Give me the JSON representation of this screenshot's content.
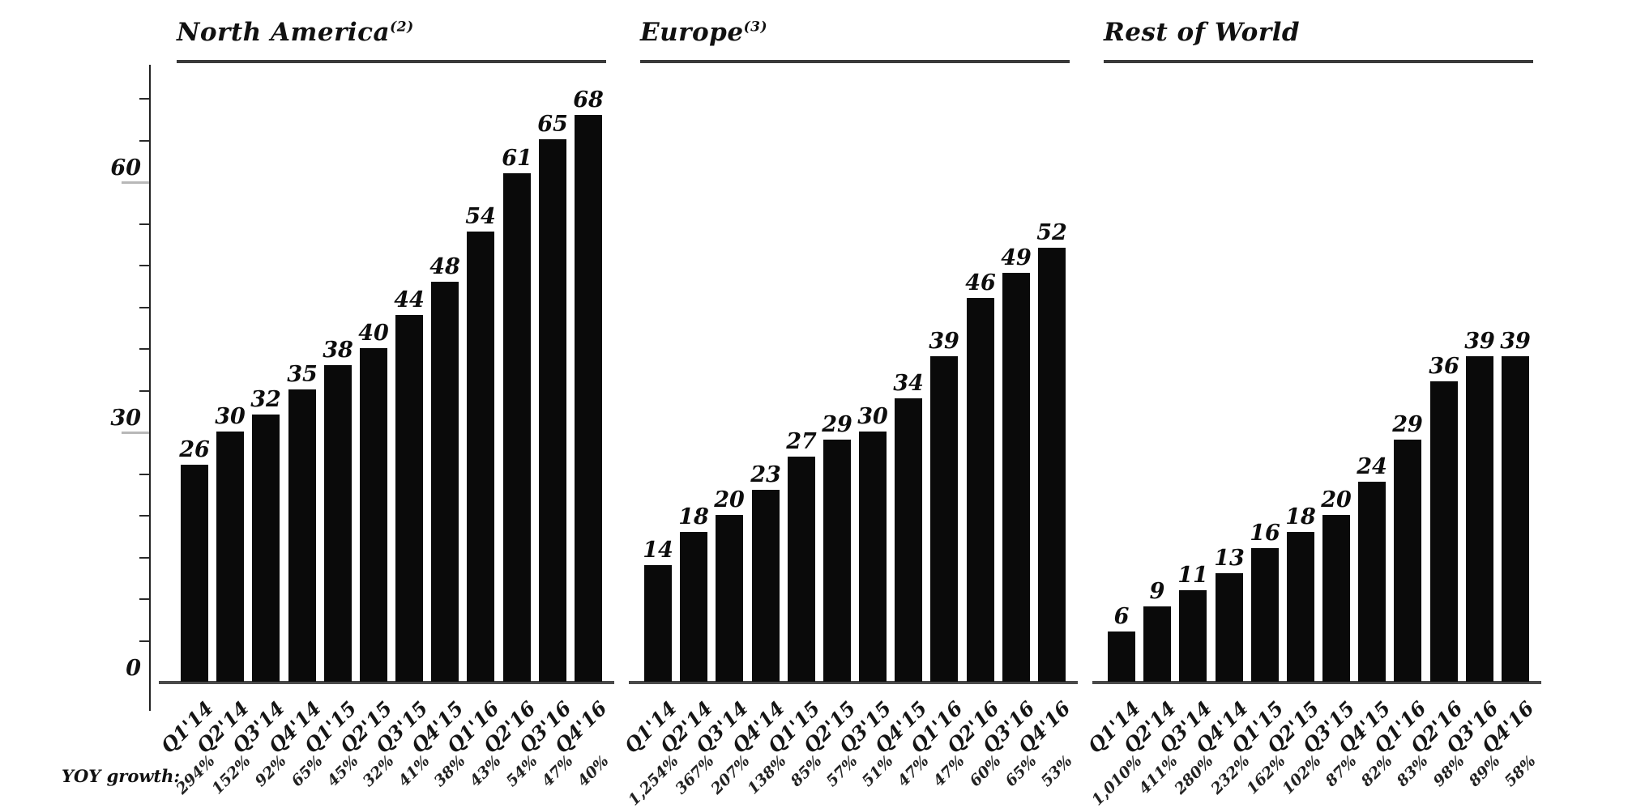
{
  "colors": {
    "background": "#ffffff",
    "bar": "#0a0a0a",
    "text": "#111111",
    "axis": "#222222",
    "baseline": "#4a4a4a",
    "title_rule": "#3a3a3a",
    "major_tick_stub": "#b8b8b8"
  },
  "yoy_label": "YOY growth:",
  "y_axis": {
    "min": 0,
    "max": 70,
    "minor_step": 5,
    "major_ticks": [
      {
        "value": 60,
        "label": "60"
      },
      {
        "value": 30,
        "label": "30"
      },
      {
        "value": 0,
        "label": "0"
      }
    ]
  },
  "chart_data": [
    {
      "type": "bar",
      "title": "North America",
      "footnote": "(2)",
      "categories": [
        "Q1'14",
        "Q2'14",
        "Q3'14",
        "Q4'14",
        "Q1'15",
        "Q2'15",
        "Q3'15",
        "Q4'15",
        "Q1'16",
        "Q2'16",
        "Q3'16",
        "Q4'16"
      ],
      "values": [
        26,
        30,
        32,
        35,
        38,
        40,
        44,
        48,
        54,
        61,
        65,
        68
      ],
      "yoy_growth": [
        "294%",
        "152%",
        "92%",
        "65%",
        "45%",
        "32%",
        "41%",
        "38%",
        "43%",
        "54%",
        "47%",
        "40%"
      ],
      "xlabel": "",
      "ylabel": "",
      "ylim": [
        0,
        70
      ],
      "yticks": [
        0,
        30,
        60
      ],
      "grid": false,
      "has_y_axis": true
    },
    {
      "type": "bar",
      "title": "Europe",
      "footnote": "(3)",
      "categories": [
        "Q1'14",
        "Q2'14",
        "Q3'14",
        "Q4'14",
        "Q1'15",
        "Q2'15",
        "Q3'15",
        "Q4'15",
        "Q1'16",
        "Q2'16",
        "Q3'16",
        "Q4'16"
      ],
      "values": [
        14,
        18,
        20,
        23,
        27,
        29,
        30,
        34,
        39,
        46,
        49,
        52
      ],
      "yoy_growth": [
        "1,254%",
        "367%",
        "207%",
        "138%",
        "85%",
        "57%",
        "51%",
        "47%",
        "47%",
        "60%",
        "65%",
        "53%"
      ],
      "xlabel": "",
      "ylabel": "",
      "ylim": [
        0,
        70
      ],
      "yticks": [
        0,
        30,
        60
      ],
      "grid": false,
      "has_y_axis": false
    },
    {
      "type": "bar",
      "title": "Rest of World",
      "footnote": "",
      "categories": [
        "Q1'14",
        "Q2'14",
        "Q3'14",
        "Q4'14",
        "Q1'15",
        "Q2'15",
        "Q3'15",
        "Q4'15",
        "Q1'16",
        "Q2'16",
        "Q3'16",
        "Q4'16"
      ],
      "values": [
        6,
        9,
        11,
        13,
        16,
        18,
        20,
        24,
        29,
        36,
        39,
        39
      ],
      "yoy_growth": [
        "1,010%",
        "411%",
        "280%",
        "232%",
        "162%",
        "102%",
        "87%",
        "82%",
        "83%",
        "98%",
        "89%",
        "58%"
      ],
      "xlabel": "",
      "ylabel": "",
      "ylim": [
        0,
        70
      ],
      "yticks": [
        0,
        30,
        60
      ],
      "grid": false,
      "has_y_axis": false
    }
  ]
}
